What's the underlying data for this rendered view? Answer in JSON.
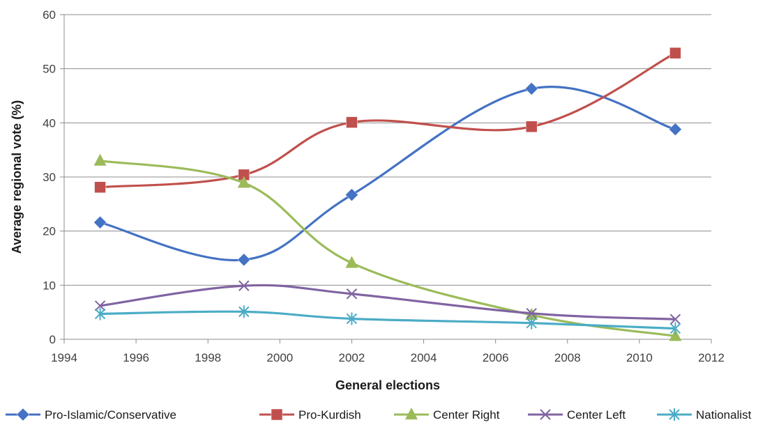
{
  "chart_data": {
    "type": "line",
    "xlabel": "General elections",
    "ylabel": "Average regional vote (%)",
    "xlim": [
      1994,
      2012
    ],
    "ylim": [
      0,
      60
    ],
    "xticks": [
      1994,
      1996,
      1998,
      2000,
      2002,
      2004,
      2006,
      2008,
      2010,
      2012
    ],
    "yticks": [
      0,
      10,
      20,
      30,
      40,
      50,
      60
    ],
    "grid": "horizontal",
    "legend_position": "bottom",
    "smooth": true,
    "series": [
      {
        "name": "Pro-Islamic/Conservative",
        "color": "#4472C4",
        "marker": "diamond",
        "x": [
          1995,
          1999,
          2002,
          2007,
          2011
        ],
        "y": [
          21.6,
          14.7,
          26.7,
          46.3,
          38.8
        ]
      },
      {
        "name": "Pro-Kurdish",
        "color": "#C0504D",
        "marker": "square",
        "x": [
          1995,
          1999,
          2002,
          2007,
          2011
        ],
        "y": [
          28.1,
          30.4,
          40.1,
          39.3,
          52.9
        ]
      },
      {
        "name": "Center Right",
        "color": "#9BBB59",
        "marker": "triangle",
        "x": [
          1995,
          1999,
          2002,
          2007,
          2011
        ],
        "y": [
          33.0,
          28.9,
          14.1,
          4.5,
          0.6
        ]
      },
      {
        "name": "Center Left",
        "color": "#8064A2",
        "marker": "x",
        "x": [
          1995,
          1999,
          2002,
          2007,
          2011
        ],
        "y": [
          6.2,
          9.9,
          8.4,
          4.8,
          3.7
        ]
      },
      {
        "name": "Nationalist",
        "color": "#4BACC6",
        "marker": "star",
        "x": [
          1995,
          1999,
          2002,
          2007,
          2011
        ],
        "y": [
          4.7,
          5.1,
          3.8,
          3.0,
          2.0
        ]
      }
    ]
  }
}
